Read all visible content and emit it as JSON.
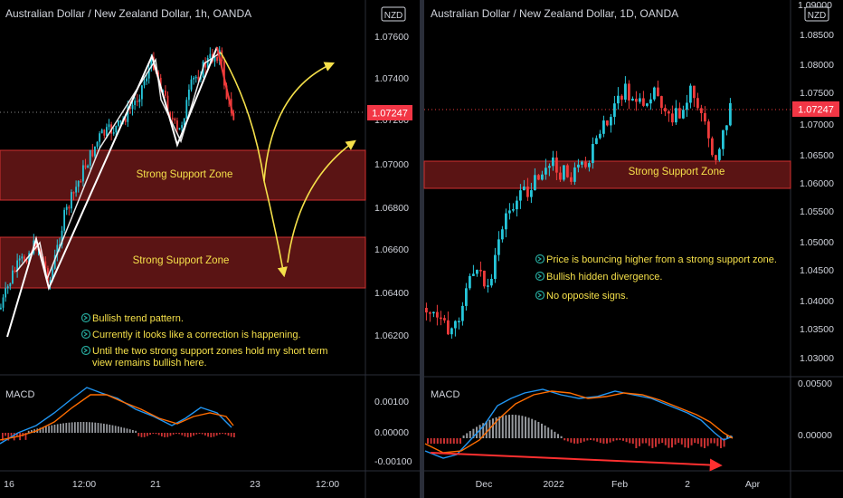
{
  "left_chart": {
    "title": "Australian Dollar / New Zealand Dollar, 1h, OANDA",
    "currency_badge": "NZD",
    "price_label": "1.07247",
    "price_axis": [
      "1.07600",
      "1.07400",
      "1.07200",
      "1.07000",
      "1.06800",
      "1.06600",
      "1.06400",
      "1.06200"
    ],
    "macd_axis": [
      "0.00100",
      "0.00000",
      "-0.00100"
    ],
    "time_axis": [
      "16",
      "12:00",
      "21",
      "23",
      "12:00"
    ],
    "zones": [
      "Strong Support Zone",
      "Strong Support Zone"
    ],
    "notes": [
      "Bullish trend pattern.",
      "Currently it looks like a correction is happening.",
      "Until the two strong support zones hold my short term",
      "view remains bullish here."
    ],
    "macd_label": "MACD"
  },
  "right_chart": {
    "title": "Australian Dollar / New Zealand Dollar, 1D, OANDA",
    "currency_badge": "NZD",
    "price_label": "1.07247",
    "price_axis": [
      "1.08500",
      "1.08000",
      "1.07500",
      "1.07000",
      "1.06500",
      "1.06000",
      "1.05500",
      "1.05000",
      "1.04500",
      "1.04000",
      "1.03500",
      "1.03000"
    ],
    "top_axis_partial": "1.09000",
    "macd_axis": [
      "0.00500",
      "0.00000"
    ],
    "time_axis": [
      "Dec",
      "2022",
      "Feb",
      "2",
      "Apr"
    ],
    "zone": "Strong Support Zone",
    "notes": [
      "Price is bouncing higher from a strong support zone.",
      "Bullish hidden divergence.",
      "No opposite signs."
    ],
    "macd_label": "MACD"
  },
  "colors": {
    "background": "#000000",
    "bull_candle": "#26c6da",
    "bear_candle": "#ef3b3b",
    "zone_fill": "#5a1414",
    "zone_border": "#d03030",
    "zone_text": "#f5e04a",
    "note_text": "#f5e04a",
    "price_badge": "#f23645",
    "axis_text": "#d1d4dc",
    "macd_line": "#2196f3",
    "signal_line": "#ff6d00",
    "arrow_yellow": "#f5e04a",
    "divergence_red": "#ff3030"
  },
  "icons": {
    "bullet": "arrow-right-circle-icon"
  }
}
